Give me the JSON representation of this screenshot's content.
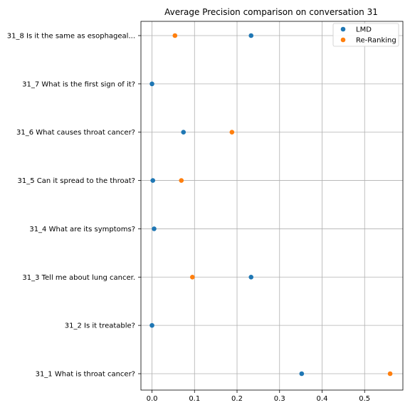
{
  "chart_data": {
    "type": "scatter",
    "title": "Average Precision comparison on conversation 31",
    "categories": [
      "31_1 What is throat cancer?",
      "31_2 Is it treatable?",
      "31_3 Tell me about lung cancer.",
      "31_4 What are its symptoms?",
      "31_5 Can it spread to the throat?",
      "31_6 What causes throat cancer?",
      "31_7 What is the first sign of it?",
      "31_8 Is it the same as esophageal..."
    ],
    "series": [
      {
        "name": "LMD",
        "color": "#1f77b4",
        "values": [
          0.352,
          0.0,
          0.233,
          0.005,
          0.002,
          0.074,
          0.0,
          0.233
        ]
      },
      {
        "name": "Re-Ranking",
        "color": "#ff7f0e",
        "values": [
          0.56,
          null,
          0.095,
          null,
          0.069,
          0.188,
          null,
          0.054
        ]
      }
    ],
    "xlim": [
      -0.026,
      0.59
    ],
    "xticks": [
      0.0,
      0.1,
      0.2,
      0.3,
      0.4,
      0.5
    ],
    "xtick_labels": [
      "0.0",
      "0.1",
      "0.2",
      "0.3",
      "0.4",
      "0.5"
    ],
    "xlabel": "",
    "ylabel": "",
    "grid": true,
    "legend_position": "top-right"
  }
}
